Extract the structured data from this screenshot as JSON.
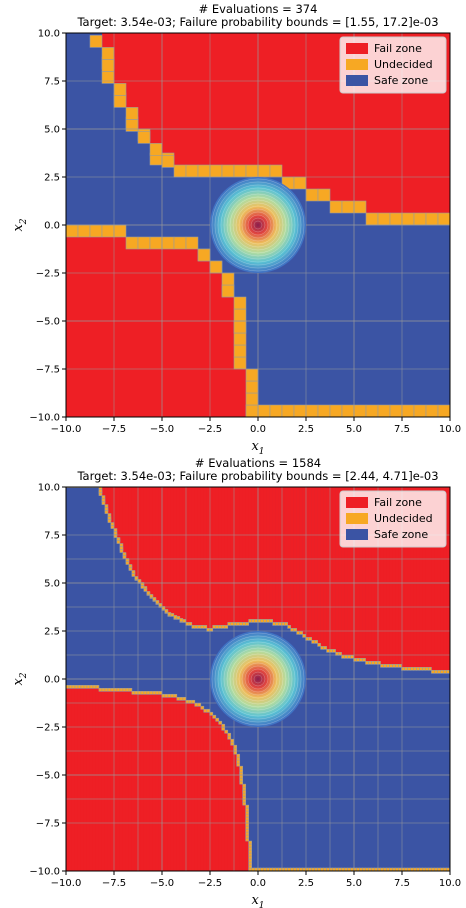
{
  "chart_data": [
    {
      "type": "heatmap",
      "title": "# Evaluations = 374",
      "subtitle": "Target: 3.54e-03; Failure probability bounds = [1.55, 17.2]e-03",
      "xlabel": "x_1",
      "ylabel": "x_2",
      "xlim": [
        -10,
        10
      ],
      "ylim": [
        -10,
        10
      ],
      "xticks": [
        "−10.0",
        "−7.5",
        "−5.0",
        "−2.5",
        "0.0",
        "2.5",
        "5.0",
        "7.5",
        "10.0"
      ],
      "yticks": [
        "−10.0",
        "−7.5",
        "−5.0",
        "−2.5",
        "0.0",
        "2.5",
        "5.0",
        "7.5",
        "10.0"
      ],
      "tick_values": [
        -10,
        -7.5,
        -5,
        -2.5,
        0,
        2.5,
        5,
        7.5,
        10
      ],
      "legend": [
        "Fail zone",
        "Undecided",
        "Safe zone"
      ],
      "legend_placement": "top-right",
      "colors": {
        "fail": "#ee1f25",
        "undecided": "#f7a823",
        "safe": "#3b54a4",
        "grid": "#9a9a9a"
      },
      "evaluations": 374,
      "target_probability": 0.00354,
      "failure_probability_bounds": [
        0.00155,
        0.0172
      ],
      "cell_size": 0.625,
      "boundary_upper": [
        [
          -8.4,
          10
        ],
        [
          -8.0,
          8.8
        ],
        [
          -7.5,
          7.5
        ],
        [
          -7.0,
          6.0
        ],
        [
          -6.2,
          4.8
        ],
        [
          -5.3,
          3.7
        ],
        [
          -4.2,
          2.9
        ],
        [
          -3.0,
          2.6
        ],
        [
          -2.0,
          2.6
        ],
        [
          -1.0,
          2.8
        ],
        [
          0.0,
          2.8
        ],
        [
          1.0,
          2.75
        ],
        [
          2.0,
          2.2
        ],
        [
          3.0,
          1.6
        ],
        [
          4.0,
          1.1
        ],
        [
          5.0,
          0.8
        ],
        [
          6.0,
          0.6
        ],
        [
          7.0,
          0.45
        ],
        [
          8.0,
          0.35
        ],
        [
          9.0,
          0.35
        ],
        [
          10.0,
          0.35
        ]
      ],
      "boundary_lower": [
        [
          -10,
          -0.4
        ],
        [
          -9.0,
          -0.45
        ],
        [
          -8.0,
          -0.5
        ],
        [
          -7.0,
          -0.6
        ],
        [
          -6.0,
          -0.7
        ],
        [
          -5.0,
          -0.8
        ],
        [
          -4.0,
          -1.0
        ],
        [
          -3.0,
          -1.4
        ],
        [
          -2.3,
          -2.0
        ],
        [
          -1.8,
          -2.7
        ],
        [
          -1.4,
          -3.6
        ],
        [
          -1.0,
          -4.8
        ],
        [
          -0.8,
          -6.0
        ],
        [
          -0.6,
          -7.5
        ],
        [
          -0.5,
          -9.0
        ],
        [
          -0.45,
          -10
        ]
      ],
      "density_center": [
        0,
        0
      ]
    },
    {
      "type": "heatmap",
      "title": "# Evaluations = 1584",
      "subtitle": "Target: 3.54e-03; Failure probability bounds = [2.44, 4.71]e-03",
      "xlabel": "x_1",
      "ylabel": "x_2",
      "xlim": [
        -10,
        10
      ],
      "ylim": [
        -10,
        10
      ],
      "xticks": [
        "−10.0",
        "−7.5",
        "−5.0",
        "−2.5",
        "0.0",
        "2.5",
        "5.0",
        "7.5",
        "10.0"
      ],
      "yticks": [
        "−10.0",
        "−7.5",
        "−5.0",
        "−2.5",
        "0.0",
        "2.5",
        "5.0",
        "7.5",
        "10.0"
      ],
      "tick_values": [
        -10,
        -7.5,
        -5,
        -2.5,
        0,
        2.5,
        5,
        7.5,
        10
      ],
      "legend": [
        "Fail zone",
        "Undecided",
        "Safe zone"
      ],
      "legend_placement": "top-right",
      "colors": {
        "fail": "#ee1f25",
        "undecided": "#f7a823",
        "safe": "#3b54a4",
        "grid": "#9a9a9a"
      },
      "evaluations": 1584,
      "target_probability": 0.00354,
      "failure_probability_bounds": [
        0.00244,
        0.00471
      ],
      "cell_size": 0.156,
      "boundary_upper": [
        [
          -8.3,
          10
        ],
        [
          -7.8,
          8.5
        ],
        [
          -7.2,
          7.0
        ],
        [
          -6.5,
          5.5
        ],
        [
          -5.5,
          4.2
        ],
        [
          -4.5,
          3.3
        ],
        [
          -3.5,
          2.8
        ],
        [
          -2.5,
          2.6
        ],
        [
          -1.5,
          2.8
        ],
        [
          -0.5,
          2.95
        ],
        [
          0.5,
          3.0
        ],
        [
          1.5,
          2.8
        ],
        [
          2.5,
          2.2
        ],
        [
          3.5,
          1.6
        ],
        [
          4.5,
          1.2
        ],
        [
          5.5,
          0.95
        ],
        [
          6.5,
          0.75
        ],
        [
          7.5,
          0.6
        ],
        [
          8.5,
          0.5
        ],
        [
          10.0,
          0.35
        ]
      ],
      "boundary_lower": [
        [
          -10,
          -0.4
        ],
        [
          -9.0,
          -0.45
        ],
        [
          -8.0,
          -0.5
        ],
        [
          -7.0,
          -0.6
        ],
        [
          -6.0,
          -0.7
        ],
        [
          -5.0,
          -0.8
        ],
        [
          -4.0,
          -1.0
        ],
        [
          -3.0,
          -1.4
        ],
        [
          -2.2,
          -2.0
        ],
        [
          -1.6,
          -2.8
        ],
        [
          -1.2,
          -3.6
        ],
        [
          -0.9,
          -4.8
        ],
        [
          -0.7,
          -6.0
        ],
        [
          -0.55,
          -7.5
        ],
        [
          -0.45,
          -9.0
        ],
        [
          -0.4,
          -10
        ]
      ],
      "density_center": [
        0,
        0
      ]
    }
  ]
}
